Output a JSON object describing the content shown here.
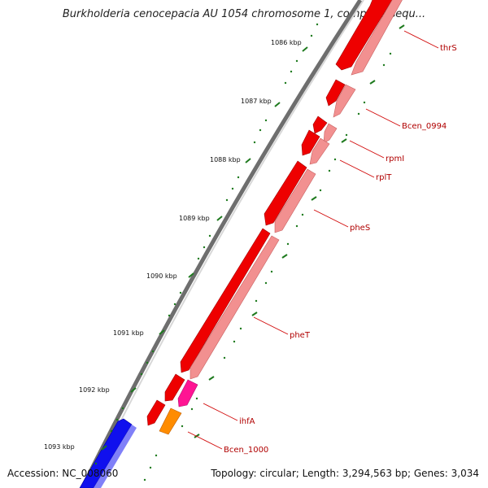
{
  "title": "Burkholderia cenocepacia AU 1054 chromosome 1, complete sequ...",
  "footer": {
    "accession": "Accession: NC_008060",
    "summary": "Topology: circular; Length: 3,294,563 bp; Genes: 3,034"
  },
  "colors": {
    "forward_gene": "#ee0000",
    "reverse_gene": "#f29090",
    "pink_gene": "#ff1493",
    "orange_gene": "#ff8c00",
    "blue_gene": "#1010ee",
    "backbone": "#777777",
    "tick": "#1e7a1e",
    "label": "#b00000"
  },
  "ticks": [
    "1086 kbp",
    "1087 kbp",
    "1088 kbp",
    "1089 kbp",
    "1090 kbp",
    "1091 kbp",
    "1092 kbp",
    "1093 kbp"
  ],
  "genes": [
    "thrS",
    "Bcen_0994",
    "rpmI",
    "rplT",
    "pheS",
    "pheT",
    "ihfA",
    "Bcen_1000"
  ]
}
